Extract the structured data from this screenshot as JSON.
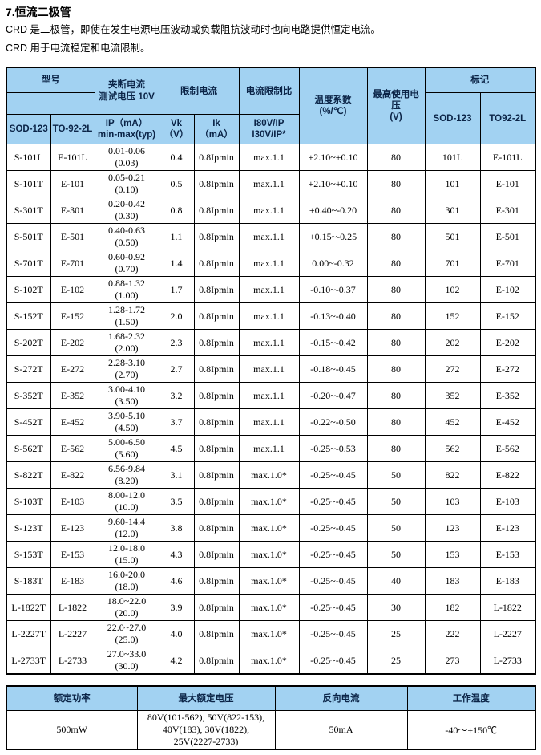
{
  "page": {
    "title": "7.恒流二极管",
    "intro": [
      "CRD 是二极管，即使在发生电源电压波动或负载阻抗波动时也向电路提供恒定电流。",
      "CRD 用于电流稳定和电流限制。"
    ]
  },
  "colors": {
    "header_bg": "#a2d2f2",
    "header_text": "#0b2447",
    "border": "#000000",
    "body_bg": "#ffffff"
  },
  "main_table": {
    "header": {
      "model": "型号",
      "model_sod": "SOD-123",
      "model_to": "TO-92-2L",
      "pinch_off": "夹断电流\n测试电压 10V",
      "pinch_off_sub": "IP（mA）\nmin-max(typ)",
      "limit_current": "限制电流",
      "vk": "Vk\n（V）",
      "ik": "Ik\n（mA）",
      "current_limit_ratio": "电流限制比",
      "current_limit_ratio_sub": "I80V/IP\nI30V/IP*",
      "temp_coefficient": "温度系数\n(%/℃)",
      "max_operating_voltage": "最高使用电压\n(V)",
      "marking": "标记",
      "marking_sod": "SOD-123",
      "marking_to": "TO92-2L"
    },
    "rows": [
      [
        "S-101L",
        "E-101L",
        "0.01-0.06 (0.03)",
        "0.4",
        "0.8Ipmin",
        "max.1.1",
        "+2.10~+0.10",
        "80",
        "101L",
        "E-101L"
      ],
      [
        "S-101T",
        "E-101",
        "0.05-0.21 (0.10)",
        "0.5",
        "0.8Ipmin",
        "max.1.1",
        "+2.10~+0.10",
        "80",
        "101",
        "E-101"
      ],
      [
        "S-301T",
        "E-301",
        "0.20-0.42 (0.30)",
        "0.8",
        "0.8Ipmin",
        "max.1.1",
        "+0.40~-0.20",
        "80",
        "301",
        "E-301"
      ],
      [
        "S-501T",
        "E-501",
        "0.40-0.63 (0.50)",
        "1.1",
        "0.8Ipmin",
        "max.1.1",
        "+0.15~-0.25",
        "80",
        "501",
        "E-501"
      ],
      [
        "S-701T",
        "E-701",
        "0.60-0.92 (0.70)",
        "1.4",
        "0.8Ipmin",
        "max.1.1",
        "0.00~-0.32",
        "80",
        "701",
        "E-701"
      ],
      [
        "S-102T",
        "E-102",
        "0.88-1.32 (1.00)",
        "1.7",
        "0.8Ipmin",
        "max.1.1",
        "-0.10~-0.37",
        "80",
        "102",
        "E-102"
      ],
      [
        "S-152T",
        "E-152",
        "1.28-1.72 (1.50)",
        "2.0",
        "0.8Ipmin",
        "max.1.1",
        "-0.13~-0.40",
        "80",
        "152",
        "E-152"
      ],
      [
        "S-202T",
        "E-202",
        "1.68-2.32 (2.00)",
        "2.3",
        "0.8Ipmin",
        "max.1.1",
        "-0.15~-0.42",
        "80",
        "202",
        "E-202"
      ],
      [
        "S-272T",
        "E-272",
        "2.28-3.10 (2.70)",
        "2.7",
        "0.8Ipmin",
        "max.1.1",
        "-0.18~-0.45",
        "80",
        "272",
        "E-272"
      ],
      [
        "S-352T",
        "E-352",
        "3.00-4.10 (3.50)",
        "3.2",
        "0.8Ipmin",
        "max.1.1",
        "-0.20~-0.47",
        "80",
        "352",
        "E-352"
      ],
      [
        "S-452T",
        "E-452",
        "3.90-5.10 (4.50)",
        "3.7",
        "0.8Ipmin",
        "max.1.1",
        "-0.22~-0.50",
        "80",
        "452",
        "E-452"
      ],
      [
        "S-562T",
        "E-562",
        "5.00-6.50 (5.60)",
        "4.5",
        "0.8Ipmin",
        "max.1.1",
        "-0.25~-0.53",
        "80",
        "562",
        "E-562"
      ],
      [
        "S-822T",
        "E-822",
        "6.56-9.84 (8.20)",
        "3.1",
        "0.8Ipmin",
        "max.1.0*",
        "-0.25~-0.45",
        "50",
        "822",
        "E-822"
      ],
      [
        "S-103T",
        "E-103",
        "8.00-12.0 (10.0)",
        "3.5",
        "0.8Ipmin",
        "max.1.0*",
        "-0.25~-0.45",
        "50",
        "103",
        "E-103"
      ],
      [
        "S-123T",
        "E-123",
        "9.60-14.4 (12.0)",
        "3.8",
        "0.8Ipmin",
        "max.1.0*",
        "-0.25~-0.45",
        "50",
        "123",
        "E-123"
      ],
      [
        "S-153T",
        "E-153",
        "12.0-18.0 (15.0)",
        "4.3",
        "0.8Ipmin",
        "max.1.0*",
        "-0.25~-0.45",
        "50",
        "153",
        "E-153"
      ],
      [
        "S-183T",
        "E-183",
        "16.0-20.0 (18.0)",
        "4.6",
        "0.8Ipmin",
        "max.1.0*",
        "-0.25~-0.45",
        "40",
        "183",
        "E-183"
      ],
      [
        "L-1822T",
        "L-1822",
        "18.0~22.0 (20.0)",
        "3.9",
        "0.8Ipmin",
        "max.1.0*",
        "-0.25~-0.45",
        "30",
        "182",
        "L-1822"
      ],
      [
        "L-2227T",
        "L-2227",
        "22.0~27.0 (25.0)",
        "4.0",
        "0.8Ipmin",
        "max.1.0*",
        "-0.25~-0.45",
        "25",
        "222",
        "L-2227"
      ],
      [
        "L-2733T",
        "L-2733",
        "27.0~33.0 (30.0)",
        "4.2",
        "0.8Ipmin",
        "max.1.0*",
        "-0.25~-0.45",
        "25",
        "273",
        "L-2733"
      ]
    ]
  },
  "bottom_table": {
    "headers": [
      "额定功率",
      "最大额定电压",
      "反向电流",
      "工作温度"
    ],
    "values": [
      "500mW",
      "80V(101-562), 50V(822-153),\n40V(183), 30V(1822),\n25V(2227-2733)",
      "50mA",
      "-40～+150℃"
    ]
  }
}
